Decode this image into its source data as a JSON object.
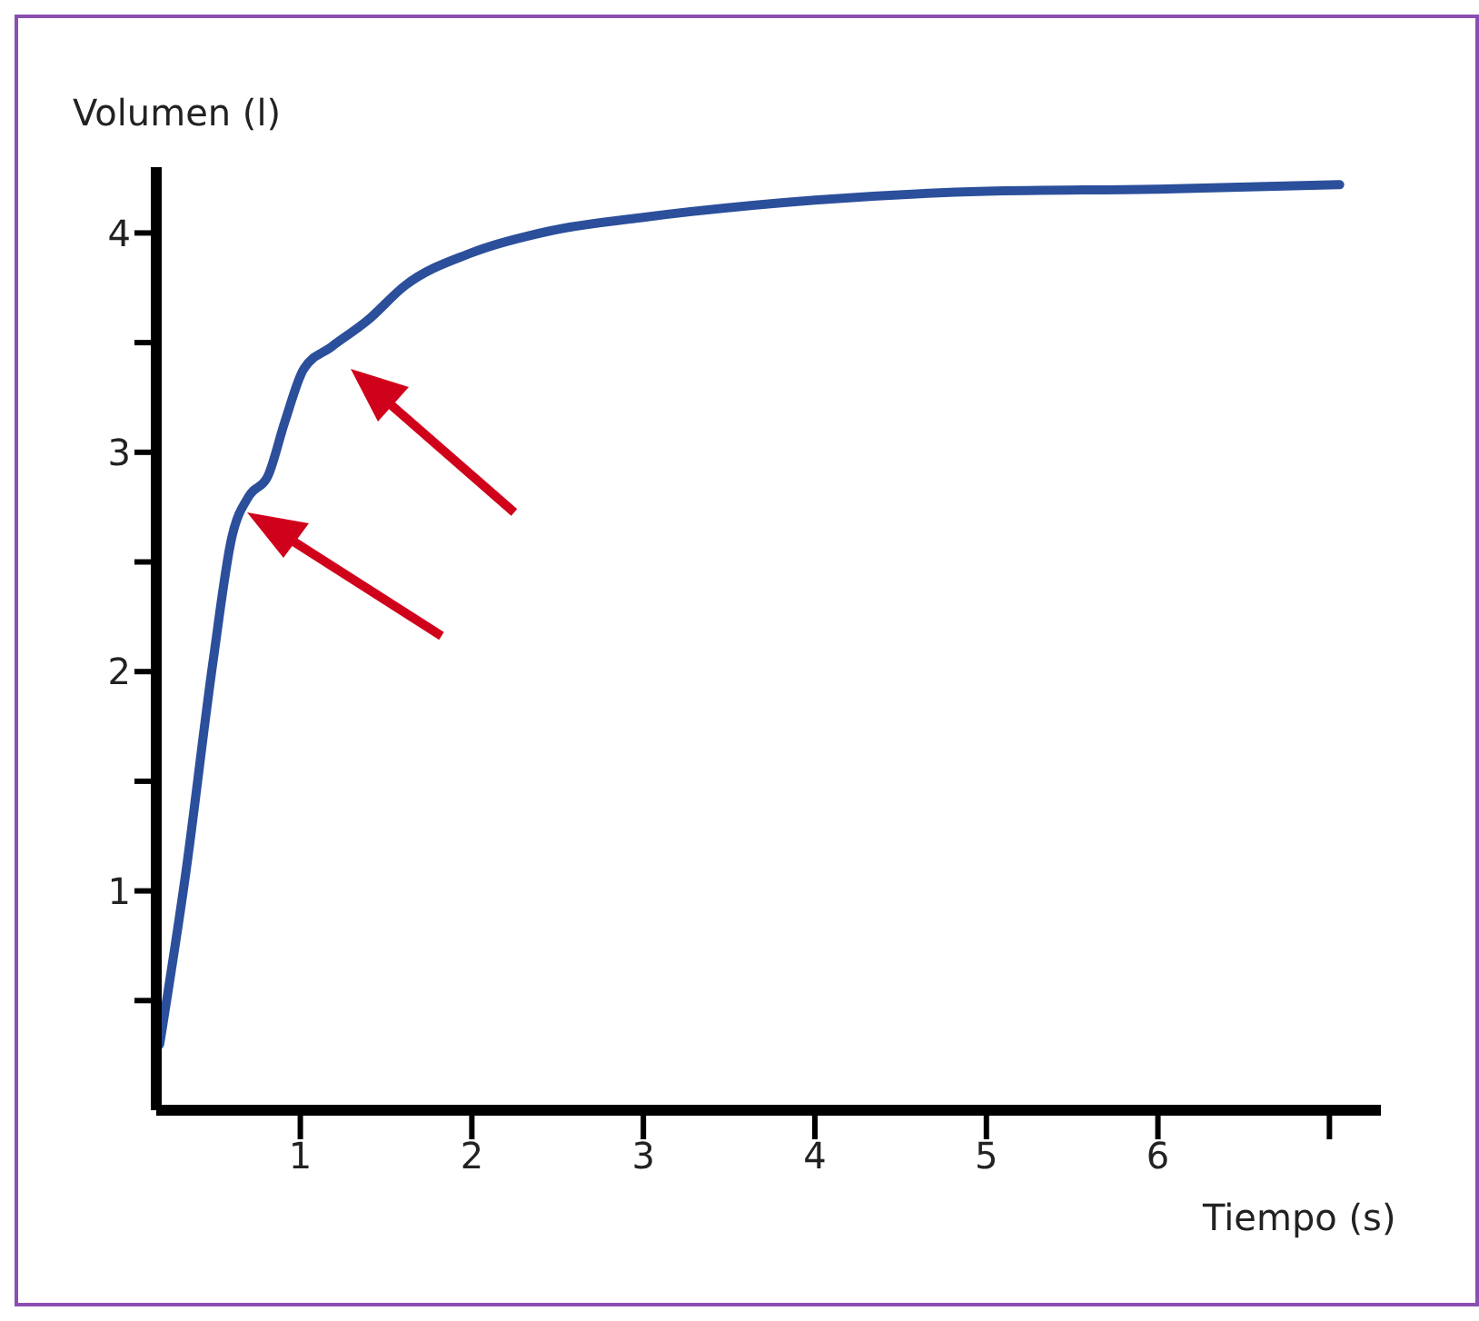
{
  "chart_data": {
    "type": "line",
    "xlabel": "Tiempo (s)",
    "ylabel": "Volumen (l)",
    "x": [
      0.18,
      0.33,
      0.49,
      0.6,
      0.7,
      0.81,
      0.91,
      1.02,
      1.18,
      1.39,
      1.61,
      2.0,
      2.46,
      2.99,
      4.0,
      5.0,
      6.0,
      7.06
    ],
    "series": [
      {
        "color": "#2b4f9b",
        "values": [
          0.3,
          1.07,
          2.04,
          2.61,
          2.8,
          2.89,
          3.14,
          3.38,
          3.48,
          3.6,
          3.76,
          3.91,
          4.01,
          4.07,
          4.15,
          4.19,
          4.2,
          4.22
        ]
      }
    ],
    "xlim": [
      0.16,
      7.3
    ],
    "ylim": [
      0,
      4.3
    ],
    "xticks": [
      1,
      2,
      3,
      4,
      5,
      6,
      {
        "value": 7,
        "label": null
      }
    ],
    "yticks": [
      {
        "value": 0.5,
        "label": null
      },
      1,
      {
        "value": 1.5,
        "label": null
      },
      2,
      {
        "value": 2.5,
        "label": null
      },
      3,
      {
        "value": 3.5,
        "label": null
      },
      4
    ],
    "grid": false,
    "legend": false,
    "marker": "none",
    "line_style": "solid"
  }
}
